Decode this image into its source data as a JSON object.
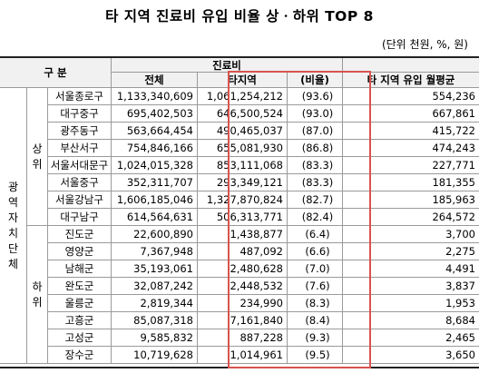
{
  "title": "타 지역 진료비 유입 비율 상ㆍ하위 TOP 8",
  "unit": "(단위 천원, %, 원)",
  "header": {
    "category": "구 분",
    "expense": "진료비",
    "total": "전체",
    "other_region": "타지역",
    "ratio": "(비율)",
    "monthly": "타 지역 유입 월평균"
  },
  "group_label": [
    "광",
    "역",
    "자",
    "치",
    "단",
    "체"
  ],
  "upper_label": [
    "상",
    "위"
  ],
  "lower_label": [
    "하",
    "위"
  ],
  "highlight_color": "#d9534f",
  "upper": [
    {
      "name": "서울종로구",
      "total": "1,133,340,609",
      "other": "1,061,254,212",
      "ratio": "(93.6)",
      "monthly": "554,236"
    },
    {
      "name": "대구중구",
      "total": "695,402,503",
      "other": "646,500,524",
      "ratio": "(93.0)",
      "monthly": "667,861"
    },
    {
      "name": "광주동구",
      "total": "563,664,454",
      "other": "490,465,037",
      "ratio": "(87.0)",
      "monthly": "415,722"
    },
    {
      "name": "부산서구",
      "total": "754,846,166",
      "other": "655,081,930",
      "ratio": "(86.8)",
      "monthly": "474,243"
    },
    {
      "name": "서울서대문구",
      "total": "1,024,015,328",
      "other": "853,111,068",
      "ratio": "(83.3)",
      "monthly": "227,771"
    },
    {
      "name": "서울중구",
      "total": "352,311,707",
      "other": "293,349,121",
      "ratio": "(83.3)",
      "monthly": "181,355"
    },
    {
      "name": "서울강남구",
      "total": "1,606,185,046",
      "other": "1,327,870,824",
      "ratio": "(82.7)",
      "monthly": "185,963"
    },
    {
      "name": "대구남구",
      "total": "614,564,631",
      "other": "506,313,771",
      "ratio": "(82.4)",
      "monthly": "264,572"
    }
  ],
  "lower": [
    {
      "name": "진도군",
      "total": "22,600,890",
      "other": "1,438,877",
      "ratio": "(6.4)",
      "monthly": "3,700"
    },
    {
      "name": "영양군",
      "total": "7,367,948",
      "other": "487,092",
      "ratio": "(6.6)",
      "monthly": "2,275"
    },
    {
      "name": "남해군",
      "total": "35,193,061",
      "other": "2,480,628",
      "ratio": "(7.0)",
      "monthly": "4,491"
    },
    {
      "name": "완도군",
      "total": "32,087,242",
      "other": "2,448,532",
      "ratio": "(7.6)",
      "monthly": "3,837"
    },
    {
      "name": "울릉군",
      "total": "2,819,344",
      "other": "234,990",
      "ratio": "(8.3)",
      "monthly": "1,953"
    },
    {
      "name": "고흥군",
      "total": "85,087,318",
      "other": "7,161,840",
      "ratio": "(8.4)",
      "monthly": "8,684"
    },
    {
      "name": "고성군",
      "total": "9,585,832",
      "other": "887,228",
      "ratio": "(9.3)",
      "monthly": "2,465"
    },
    {
      "name": "장수군",
      "total": "10,719,628",
      "other": "1,014,961",
      "ratio": "(9.5)",
      "monthly": "3,650"
    }
  ]
}
